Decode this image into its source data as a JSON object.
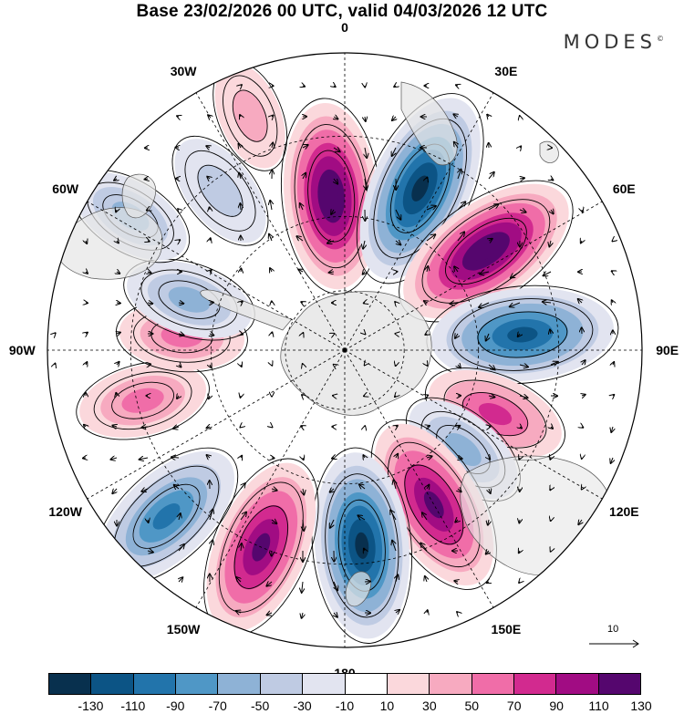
{
  "title": "Base 23/02/2026 00 UTC, valid 04/03/2026 12 UTC",
  "brand": {
    "name": "MODES",
    "mark": "©"
  },
  "longitude_labels": [
    {
      "text": "0",
      "lon": 0
    },
    {
      "text": "30E",
      "lon": 30
    },
    {
      "text": "60E",
      "lon": 60
    },
    {
      "text": "90E",
      "lon": 90
    },
    {
      "text": "120E",
      "lon": 120
    },
    {
      "text": "150E",
      "lon": 150
    },
    {
      "text": "180",
      "lon": 180
    },
    {
      "text": "150W",
      "lon": -150
    },
    {
      "text": "120W",
      "lon": -120
    },
    {
      "text": "90W",
      "lon": -90
    },
    {
      "text": "60W",
      "lon": -60
    },
    {
      "text": "30W",
      "lon": -30
    }
  ],
  "reference_vector": {
    "label": "10",
    "value": 10
  },
  "colorbar": {
    "ticks": [
      "-130",
      "-110",
      "-90",
      "-70",
      "-50",
      "-30",
      "-10",
      "10",
      "30",
      "50",
      "70",
      "90",
      "110",
      "130"
    ],
    "colors": [
      "#08304e",
      "#0c5485",
      "#2274ab",
      "#4f97c6",
      "#8eb2d6",
      "#bfcbe3",
      "#e2e4f0",
      "#ffffff",
      "#fbd8dc",
      "#f7aac0",
      "#f06da8",
      "#d22a8f",
      "#a10c83",
      "#55066e"
    ]
  },
  "map_data": {
    "projection": "south-polar-stereographic",
    "anomalies": [
      {
        "lon": -5,
        "rdist": 0.52,
        "value": 120
      },
      {
        "lon": 25,
        "rdist": 0.6,
        "value": -130
      },
      {
        "lon": 55,
        "rdist": 0.58,
        "value": 125
      },
      {
        "lon": 85,
        "rdist": 0.6,
        "value": -115
      },
      {
        "lon": 113,
        "rdist": 0.55,
        "value": 60
      },
      {
        "lon": 130,
        "rdist": 0.52,
        "value": -45
      },
      {
        "lon": 150,
        "rdist": 0.6,
        "value": 110
      },
      {
        "lon": 175,
        "rdist": 0.66,
        "value": -120
      },
      {
        "lon": -157,
        "rdist": 0.72,
        "value": 110
      },
      {
        "lon": -133,
        "rdist": 0.82,
        "value": -95
      },
      {
        "lon": -104,
        "rdist": 0.7,
        "value": 45
      },
      {
        "lon": -85,
        "rdist": 0.55,
        "value": 40
      },
      {
        "lon": -72,
        "rdist": 0.55,
        "value": -45
      },
      {
        "lon": -58,
        "rdist": 0.85,
        "value": -40
      },
      {
        "lon": -38,
        "rdist": 0.68,
        "value": -35
      },
      {
        "lon": -22,
        "rdist": 0.85,
        "value": 20
      }
    ]
  }
}
